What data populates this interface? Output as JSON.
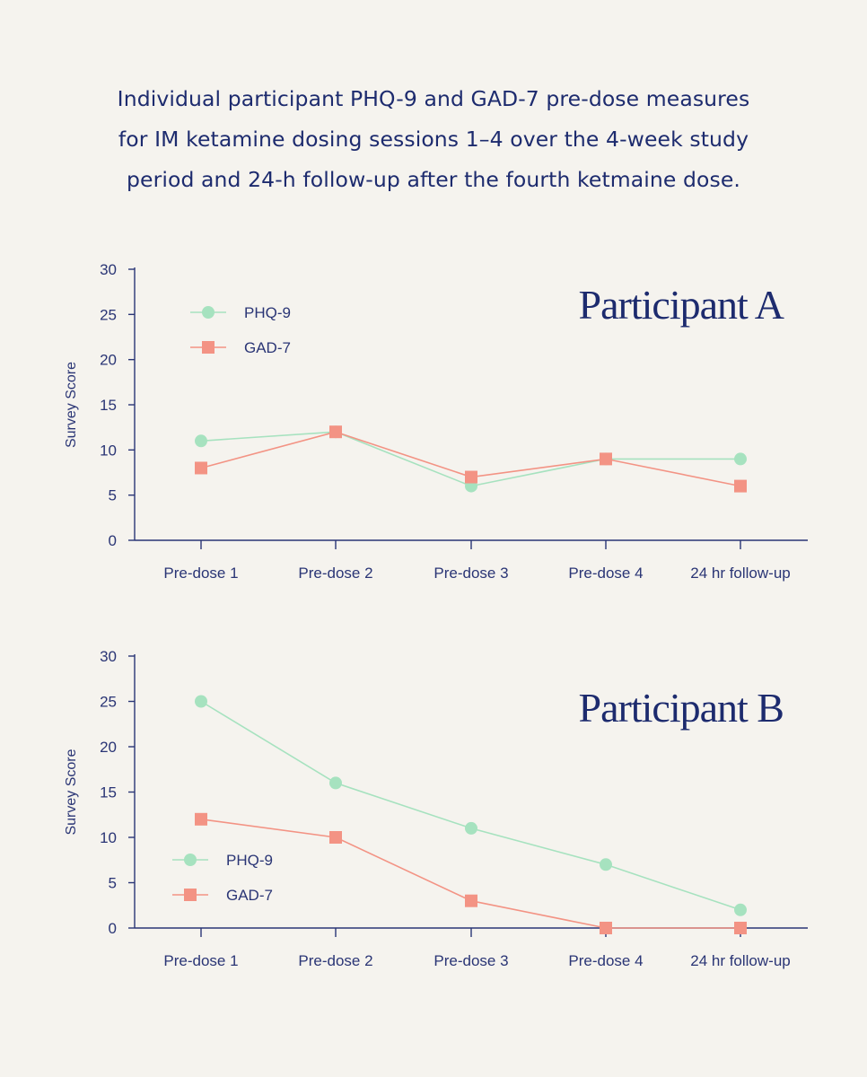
{
  "caption": {
    "line1": "Individual participant PHQ-9 and GAD-7 pre-dose measures",
    "line2": "for IM ketamine dosing sessions 1–4 over the 4-week study",
    "line3": "period and 24-h follow-up after the fourth ketmaine dose."
  },
  "colors": {
    "phq9": "#a6e2bf",
    "gad7": "#f39384",
    "axis": "#2a3575",
    "text": "#1d2b6e",
    "background": "#f5f3ee"
  },
  "chart_data": [
    {
      "type": "line",
      "title": "Participant A",
      "xlabel": "",
      "ylabel": "Survey Score",
      "ylim": [
        0,
        30
      ],
      "yticks": [
        0,
        5,
        10,
        15,
        20,
        25,
        30
      ],
      "categories": [
        "Pre-dose 1",
        "Pre-dose 2",
        "Pre-dose 3",
        "Pre-dose 4",
        "24 hr follow-up"
      ],
      "legend_position": "top-left",
      "series": [
        {
          "name": "PHQ-9",
          "marker": "circle",
          "values": [
            11,
            12,
            6,
            9,
            9
          ]
        },
        {
          "name": "GAD-7",
          "marker": "square",
          "values": [
            8,
            12,
            7,
            9,
            6
          ]
        }
      ]
    },
    {
      "type": "line",
      "title": "Participant B",
      "xlabel": "",
      "ylabel": "Survey Score",
      "ylim": [
        0,
        30
      ],
      "yticks": [
        0,
        5,
        10,
        15,
        20,
        25,
        30
      ],
      "categories": [
        "Pre-dose 1",
        "Pre-dose 2",
        "Pre-dose 3",
        "Pre-dose 4",
        "24 hr follow-up"
      ],
      "legend_position": "bottom-left",
      "series": [
        {
          "name": "PHQ-9",
          "marker": "circle",
          "values": [
            25,
            16,
            11,
            7,
            2
          ]
        },
        {
          "name": "GAD-7",
          "marker": "square",
          "values": [
            12,
            10,
            3,
            0,
            0
          ]
        }
      ]
    }
  ]
}
